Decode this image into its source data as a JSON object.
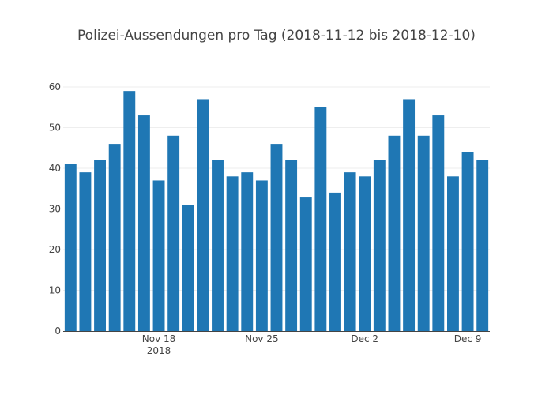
{
  "chart_data": {
    "type": "bar",
    "title": "Polizei-Aussendungen pro Tag (2018-11-12 bis 2018-12-10)",
    "xlabel": "",
    "ylabel": "",
    "ylim": [
      0,
      60
    ],
    "yticks": [
      0,
      10,
      20,
      30,
      40,
      50,
      60
    ],
    "grid": true,
    "bar_color": "#1f77b4",
    "categories": [
      "2018-11-12",
      "2018-11-13",
      "2018-11-14",
      "2018-11-15",
      "2018-11-16",
      "2018-11-17",
      "2018-11-18",
      "2018-11-19",
      "2018-11-20",
      "2018-11-21",
      "2018-11-22",
      "2018-11-23",
      "2018-11-24",
      "2018-11-25",
      "2018-11-26",
      "2018-11-27",
      "2018-11-28",
      "2018-11-29",
      "2018-11-30",
      "2018-12-01",
      "2018-12-02",
      "2018-12-03",
      "2018-12-04",
      "2018-12-05",
      "2018-12-06",
      "2018-12-07",
      "2018-12-08",
      "2018-12-09",
      "2018-12-10"
    ],
    "values": [
      41,
      39,
      42,
      46,
      59,
      53,
      37,
      48,
      31,
      57,
      42,
      38,
      39,
      37,
      46,
      42,
      33,
      55,
      34,
      39,
      38,
      42,
      48,
      57,
      48,
      53,
      38,
      44,
      42
    ],
    "xticks": [
      {
        "date": "2018-11-18",
        "label": "Nov 18",
        "sublabel": "2018"
      },
      {
        "date": "2018-11-25",
        "label": "Nov 25",
        "sublabel": ""
      },
      {
        "date": "2018-12-02",
        "label": "Dec 2",
        "sublabel": ""
      },
      {
        "date": "2018-12-09",
        "label": "Dec 9",
        "sublabel": ""
      }
    ]
  }
}
